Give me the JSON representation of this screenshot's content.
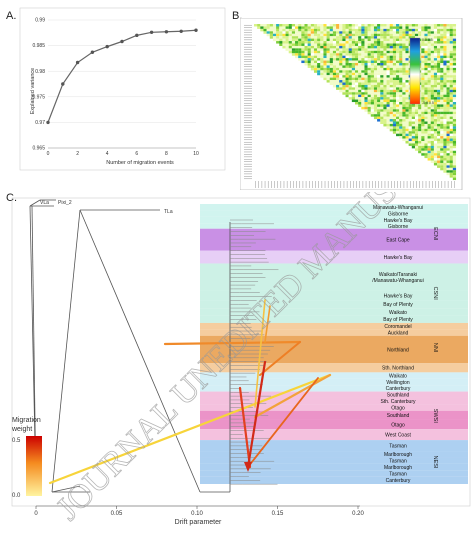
{
  "figure": {
    "panel_a_label": "A.",
    "panel_b_label": "B.",
    "panel_c_label": "C.",
    "watermark_text": "JOURNAL UNEDITED MANUSCRIPT"
  },
  "panel_b": {
    "scale_top": "0.0 0.5",
    "scale_bottom": "-0.0 0.5"
  },
  "chart_data": [
    {
      "type": "line",
      "xlabel": "Number of migration events",
      "ylabel": "Explained variance",
      "x": [
        0,
        1,
        2,
        3,
        4,
        5,
        6,
        7,
        8,
        9,
        10
      ],
      "y": [
        0.97,
        0.9775,
        0.9817,
        0.9837,
        0.9848,
        0.9858,
        0.987,
        0.9876,
        0.9877,
        0.9878,
        0.988
      ],
      "xlim": [
        0,
        10
      ],
      "ylim": [
        0.965,
        0.99
      ],
      "xticks": [
        "0",
        "2",
        "4",
        "6",
        "8",
        "10"
      ],
      "yticks": [
        "0.965",
        "0.97",
        "0.975",
        "0.98",
        "0.985",
        "0.99"
      ],
      "grid": true
    },
    {
      "type": "tree",
      "xlabel": "Drift parameter",
      "xlim": [
        0,
        0.2
      ],
      "xticks": [
        "0",
        "0.05",
        "0.10",
        "0.15",
        "0.20"
      ],
      "legend_title": "Migration\nweight",
      "legend_ticks": [
        "0.5",
        "0.0"
      ],
      "outgroups": [
        "VLa",
        "Pixi_2",
        "TLa"
      ],
      "regions": [
        {
          "name": "Manawatu-Whanganui",
          "band": "ECNI",
          "color": "#c9f2ec"
        },
        {
          "name": "Gisborne",
          "band": "ECNI",
          "color": "#c9f2ec"
        },
        {
          "name": "Hawke's Bay",
          "band": "ECNI",
          "color": "#c9f2ec"
        },
        {
          "name": "Gisborne",
          "band": "ECNI",
          "color": "#c9f2ec"
        },
        {
          "name": "East Cape",
          "band": "ECNI",
          "color": "#c07de0"
        },
        {
          "name": "Hawke's Bay",
          "band": "ECNI",
          "color": "#e3c7f4"
        },
        {
          "name": "Waikato/Taranaki\n/Manawatu-Whanganui",
          "band": "CSNI",
          "color": "#c4efe2"
        },
        {
          "name": "Hawke's Bay",
          "band": "CSNI",
          "color": "#c4efe2"
        },
        {
          "name": "Bay of Plenty",
          "band": "CSNI",
          "color": "#c4efe2"
        },
        {
          "name": "Waikato",
          "band": "CSNI",
          "color": "#c4efe2"
        },
        {
          "name": "Bay of Plenty",
          "band": "CSNI",
          "color": "#c4efe2"
        },
        {
          "name": "Coromandel",
          "band": "NNI",
          "color": "#f3c48e"
        },
        {
          "name": "Auckland",
          "band": "NNI",
          "color": "#f3c48e"
        },
        {
          "name": "Northland",
          "band": "NNI",
          "color": "#e79a45"
        },
        {
          "name": "Sth. Northland",
          "band": "NNI",
          "color": "#f3c48e"
        },
        {
          "name": "Waikato",
          "band": "",
          "color": "#ccecf5"
        },
        {
          "name": "Wellington",
          "band": "",
          "color": "#ccecf5"
        },
        {
          "name": "Canterbury",
          "band": "",
          "color": "#ccecf5"
        },
        {
          "name": "Southland",
          "band": "SWSI",
          "color": "#f2b6d8"
        },
        {
          "name": "Sth. Canterbury",
          "band": "SWSI",
          "color": "#f2b6d8"
        },
        {
          "name": "Otago",
          "band": "SWSI",
          "color": "#f2b6d8"
        },
        {
          "name": "Southland",
          "band": "SWSI",
          "color": "#e780be"
        },
        {
          "name": "Otago",
          "band": "SWSI",
          "color": "#e780be"
        },
        {
          "name": "West Coast",
          "band": "SWSI",
          "color": "#f2b6d8"
        },
        {
          "name": "Tasman",
          "band": "NESI",
          "color": "#9fc8ef"
        },
        {
          "name": "Marlborough",
          "band": "NESI",
          "color": "#9fc8ef"
        },
        {
          "name": "Tasman",
          "band": "NESI",
          "color": "#9fc8ef"
        },
        {
          "name": "Marlborough",
          "band": "NESI",
          "color": "#9fc8ef"
        },
        {
          "name": "Tasman",
          "band": "NESI",
          "color": "#9fc8ef"
        },
        {
          "name": "Canterbury",
          "band": "NESI",
          "color": "#9fc8ef"
        }
      ],
      "band_labels": [
        "ECNI",
        "CSNI",
        "NNI",
        "SWSI",
        "NESI"
      ]
    }
  ]
}
